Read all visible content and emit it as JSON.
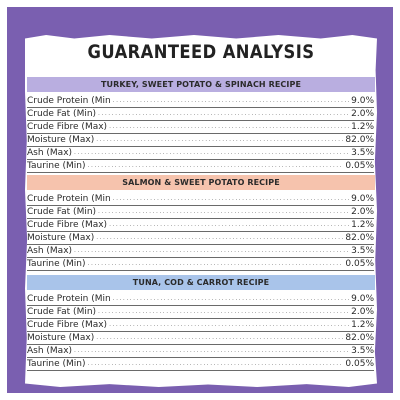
{
  "title": "GUARANTEED ANALYSIS",
  "colors": {
    "frame": "#7a5fb0",
    "band_1": "#b9aee0",
    "band_2": "#f6c3ad",
    "band_3": "#a9c4ea"
  },
  "sections": [
    {
      "heading": "TURKEY, SWEET POTATO & SPINACH RECIPE",
      "rows": [
        {
          "label": "Crude Protein (Min",
          "value": "9.0%"
        },
        {
          "label": "Crude Fat (Min)",
          "value": "2.0%"
        },
        {
          "label": "Crude Fibre (Max)",
          "value": "1.2%"
        },
        {
          "label": "Moisture (Max)",
          "value": "82.0%"
        },
        {
          "label": "Ash (Max)",
          "value": "3.5%"
        },
        {
          "label": "Taurine (Min)",
          "value": "0.05%"
        }
      ]
    },
    {
      "heading": "SALMON & SWEET POTATO RECIPE",
      "rows": [
        {
          "label": "Crude Protein (Min",
          "value": "9.0%"
        },
        {
          "label": "Crude Fat (Min)",
          "value": "2.0%"
        },
        {
          "label": "Crude Fibre (Max)",
          "value": "1.2%"
        },
        {
          "label": "Moisture (Max)",
          "value": "82.0%"
        },
        {
          "label": "Ash (Max)",
          "value": "3.5%"
        },
        {
          "label": "Taurine (Min)",
          "value": "0.05%"
        }
      ]
    },
    {
      "heading": "TUNA, COD & CARROT RECIPE",
      "rows": [
        {
          "label": "Crude Protein (Min",
          "value": "9.0%"
        },
        {
          "label": "Crude Fat (Min)",
          "value": "2.0%"
        },
        {
          "label": "Crude Fibre (Max)",
          "value": "1.2%"
        },
        {
          "label": "Moisture (Max)",
          "value": "82.0%"
        },
        {
          "label": "Ash (Max)",
          "value": "3.5%"
        },
        {
          "label": "Taurine (Min)",
          "value": "0.05%"
        }
      ]
    }
  ]
}
